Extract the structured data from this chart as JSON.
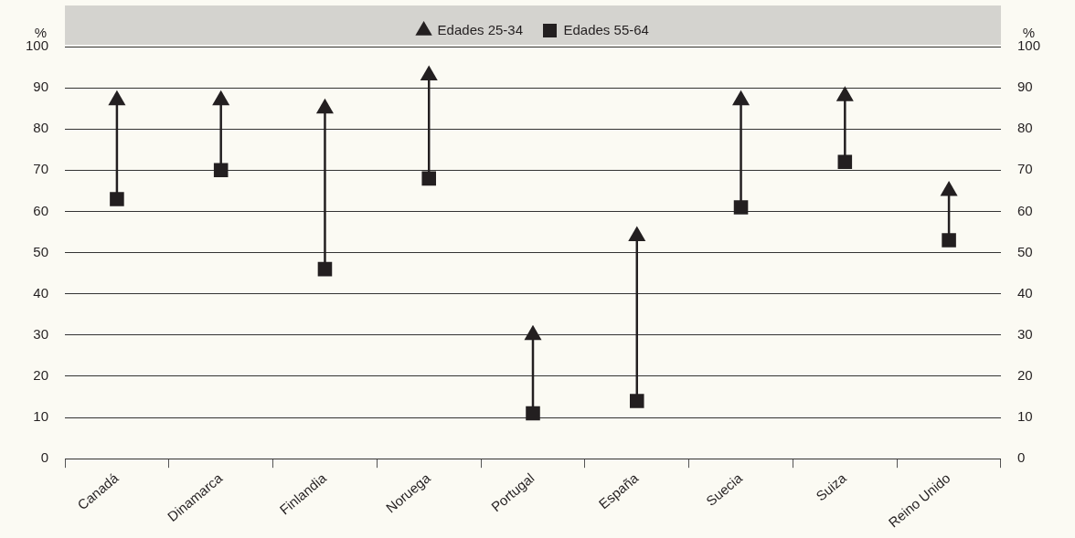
{
  "chart_data": {
    "type": "scatter",
    "categories": [
      "Canadá",
      "Dinamarca",
      "Finlandia",
      "Noruega",
      "Portugal",
      "España",
      "Suecia",
      "Suiza",
      "Reino Unido"
    ],
    "series": [
      {
        "name": "Edades 25-34",
        "color": "#231f20",
        "marker": "triangle",
        "values": [
          87,
          87,
          85,
          93,
          30,
          54,
          87,
          88,
          65
        ]
      },
      {
        "name": "Edades 55-64",
        "color": "#231f20",
        "marker": "square",
        "values": [
          63,
          70,
          46,
          68,
          11,
          14,
          61,
          72,
          53
        ]
      }
    ],
    "ylabel": "%",
    "y2label": "%",
    "ylim": [
      0,
      100
    ],
    "yticks": [
      0,
      10,
      20,
      30,
      40,
      50,
      60,
      70,
      80,
      90,
      100
    ],
    "y2lim": [
      0,
      100
    ],
    "y2ticks": [
      0,
      10,
      20,
      30,
      40,
      50,
      60,
      70,
      80,
      90,
      100
    ],
    "grid": "y",
    "legend": "top"
  }
}
